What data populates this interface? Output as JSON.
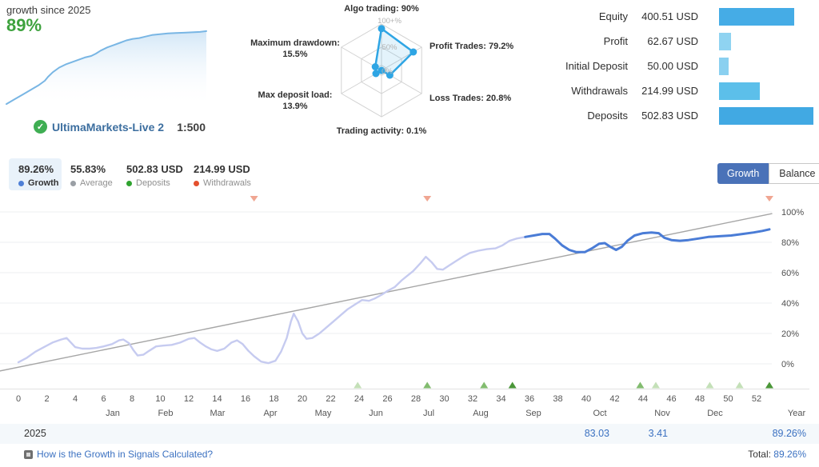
{
  "mini_card": {
    "title": "growth since 2025",
    "growth": "89%"
  },
  "account": {
    "name": "UltimaMarkets-Live 2",
    "leverage": "1:500",
    "verified_icon": "check-shield",
    "verified_color": "#3fae53"
  },
  "stats": [
    {
      "value": "89.26%",
      "label": "Growth",
      "dot_color": "#4e7fd6",
      "active": true
    },
    {
      "value": "55.83%",
      "label": "Average",
      "dot_color": "#9a9fa5",
      "active": false
    },
    {
      "value": "502.83 USD",
      "label": "Deposits",
      "dot_color": "#2fa32f",
      "active": false
    },
    {
      "value": "214.99 USD",
      "label": "Withdrawals",
      "dot_color": "#e4502e",
      "active": false
    }
  ],
  "toggle": {
    "growth_label": "Growth",
    "balance_label": "Balance",
    "active_bg": "#4a72b8"
  },
  "table": {
    "year": "2025",
    "oct_value": "83.03",
    "nov_value": "3.41",
    "year_total": "89.26%",
    "total_label": "Total:",
    "total_value": "89.26%"
  },
  "footer": {
    "link": "How is the Growth in Signals Calculated?"
  },
  "chart_data": [
    {
      "id": "mini_growth",
      "type": "area",
      "title": "growth since 2025",
      "line_color": "#79b6e4",
      "fill_color": "#aed3f0",
      "points": [
        [
          0,
          3
        ],
        [
          10,
          9
        ],
        [
          20,
          15
        ],
        [
          30,
          21
        ],
        [
          40,
          27
        ],
        [
          48,
          33
        ],
        [
          52,
          38
        ],
        [
          58,
          44
        ],
        [
          66,
          50
        ],
        [
          74,
          54
        ],
        [
          82,
          57
        ],
        [
          90,
          60
        ],
        [
          98,
          63
        ],
        [
          106,
          65
        ],
        [
          112,
          68
        ],
        [
          118,
          72
        ],
        [
          126,
          76
        ],
        [
          134,
          79
        ],
        [
          142,
          82
        ],
        [
          150,
          85
        ],
        [
          158,
          87
        ],
        [
          166,
          88
        ],
        [
          174,
          90
        ],
        [
          182,
          92
        ],
        [
          192,
          93
        ],
        [
          202,
          94
        ],
        [
          212,
          94.5
        ],
        [
          222,
          95
        ],
        [
          232,
          95.5
        ],
        [
          242,
          96
        ],
        [
          250,
          97
        ]
      ]
    },
    {
      "id": "radar",
      "type": "radar",
      "stroke_color": "#2ea5e4",
      "fill_color": "rgba(57,169,230,0.14)",
      "grid_color": "#d2d2d2",
      "rings": [
        {
          "label": "100+%",
          "r_pct": 100
        },
        {
          "label": "50%",
          "r_pct": 50
        },
        {
          "label": "0%",
          "r_pct": 11
        }
      ],
      "axes": [
        {
          "label": "Algo trading:",
          "value_text": "90%",
          "value": 90
        },
        {
          "label": "Profit Trades:",
          "value_text": "79.2%",
          "value": 79.2
        },
        {
          "label": "Loss Trades:",
          "value_text": "20.8%",
          "value": 20.8
        },
        {
          "label": "Trading activity:",
          "value_text": "0.1%",
          "value": 0.1
        },
        {
          "label": "Max deposit load:",
          "value_text": "13.9%",
          "value": 13.9
        },
        {
          "label": "Maximum drawdown:",
          "value_text": "15.5%",
          "value": 15.5
        }
      ]
    },
    {
      "id": "balance_bars",
      "type": "bar",
      "categories": [
        "Equity",
        "Profit",
        "Initial Deposit",
        "Withdrawals",
        "Deposits"
      ],
      "values": [
        400.51,
        62.67,
        50.0,
        214.99,
        502.83
      ],
      "value_labels": [
        "400.51 USD",
        "62.67 USD",
        "50.00 USD",
        "214.99 USD",
        "502.83 USD"
      ],
      "colors": [
        "#45ace6",
        "#8fd3f1",
        "#8ad0f0",
        "#5cbfea",
        "#41a9e3"
      ],
      "max": 502.83
    },
    {
      "id": "main_growth",
      "type": "line",
      "xlabel": "Year",
      "x_ticks": [
        0,
        2,
        4,
        6,
        8,
        10,
        12,
        14,
        16,
        18,
        20,
        22,
        24,
        26,
        28,
        30,
        32,
        34,
        36,
        38,
        40,
        42,
        44,
        46,
        48,
        50,
        52
      ],
      "months": [
        "Jan",
        "Feb",
        "Mar",
        "Apr",
        "May",
        "Jun",
        "Jul",
        "Aug",
        "Sep",
        "Oct",
        "Nov",
        "Dec"
      ],
      "year_label": "Year",
      "y_ticks": [
        "100%",
        "80%",
        "60%",
        "40%",
        "20%",
        "0%"
      ],
      "ylim": [
        0,
        100
      ],
      "colors": {
        "early": "#c6cbf0",
        "recent": "#4a7cd6",
        "trend": "#a6a6a6",
        "withdrawal": "#f0a692",
        "deposit_light": "#c4e0b8",
        "deposit_medium": "#82bc6f",
        "deposit_dark": "#4a9638"
      },
      "split_week": 35.7,
      "series": [
        {
          "name": "growth",
          "points": [
            [
              0,
              1
            ],
            [
              0.6,
              4
            ],
            [
              1.2,
              8
            ],
            [
              1.8,
              11
            ],
            [
              2.4,
              14
            ],
            [
              3,
              16
            ],
            [
              3.4,
              17
            ],
            [
              3.7,
              14
            ],
            [
              4,
              11
            ],
            [
              4.5,
              10
            ],
            [
              5,
              10
            ],
            [
              5.5,
              10.5
            ],
            [
              6,
              11.5
            ],
            [
              6.6,
              13
            ],
            [
              7.1,
              15.5
            ],
            [
              7.4,
              16
            ],
            [
              7.8,
              13.5
            ],
            [
              8.1,
              9
            ],
            [
              8.4,
              5.5
            ],
            [
              8.8,
              6
            ],
            [
              9.2,
              8.5
            ],
            [
              9.7,
              11.5
            ],
            [
              10.2,
              12
            ],
            [
              10.8,
              12.5
            ],
            [
              11.4,
              14
            ],
            [
              12,
              16.5
            ],
            [
              12.4,
              17
            ],
            [
              12.8,
              14
            ],
            [
              13.2,
              11.5
            ],
            [
              13.6,
              9.5
            ],
            [
              14,
              8.5
            ],
            [
              14.5,
              10
            ],
            [
              15,
              14
            ],
            [
              15.4,
              15.5
            ],
            [
              15.8,
              13
            ],
            [
              16.2,
              8.5
            ],
            [
              16.6,
              5
            ],
            [
              17.1,
              1.5
            ],
            [
              17.6,
              0.5
            ],
            [
              18.1,
              2
            ],
            [
              18.5,
              8
            ],
            [
              18.9,
              17
            ],
            [
              19.2,
              28
            ],
            [
              19.4,
              33
            ],
            [
              19.7,
              28
            ],
            [
              20,
              20
            ],
            [
              20.3,
              16.5
            ],
            [
              20.7,
              17
            ],
            [
              21.2,
              20
            ],
            [
              21.7,
              24
            ],
            [
              22.2,
              28
            ],
            [
              22.7,
              32
            ],
            [
              23.2,
              36
            ],
            [
              23.7,
              39
            ],
            [
              24.2,
              42
            ],
            [
              24.7,
              41.5
            ],
            [
              25.1,
              43
            ],
            [
              25.6,
              45.5
            ],
            [
              26,
              48
            ],
            [
              26.5,
              50.5
            ],
            [
              27,
              55
            ],
            [
              27.4,
              58
            ],
            [
              27.8,
              61
            ],
            [
              28.3,
              66
            ],
            [
              28.7,
              70.5
            ],
            [
              29.1,
              67
            ],
            [
              29.5,
              62.5
            ],
            [
              29.9,
              62
            ],
            [
              30.3,
              64.5
            ],
            [
              30.8,
              67.5
            ],
            [
              31.3,
              70.5
            ],
            [
              31.8,
              73
            ],
            [
              32.4,
              74.5
            ],
            [
              33,
              75.5
            ],
            [
              33.6,
              76
            ],
            [
              34.1,
              78
            ],
            [
              34.6,
              81
            ],
            [
              35.1,
              82.5
            ],
            [
              35.7,
              83.5
            ],
            [
              36.3,
              84.5
            ],
            [
              36.9,
              85.5
            ],
            [
              37.4,
              85.5
            ],
            [
              37.8,
              82.5
            ],
            [
              38.3,
              78
            ],
            [
              38.8,
              75
            ],
            [
              39.3,
              73.5
            ],
            [
              39.9,
              73.5
            ],
            [
              40.4,
              76
            ],
            [
              40.9,
              79
            ],
            [
              41.3,
              79.5
            ],
            [
              41.7,
              77
            ],
            [
              42.1,
              75
            ],
            [
              42.5,
              77
            ],
            [
              42.9,
              81
            ],
            [
              43.4,
              84.5
            ],
            [
              44,
              86
            ],
            [
              44.6,
              86.5
            ],
            [
              45.1,
              86
            ],
            [
              45.5,
              83
            ],
            [
              46,
              81.5
            ],
            [
              46.6,
              81
            ],
            [
              47.2,
              81.5
            ],
            [
              47.9,
              82.5
            ],
            [
              48.6,
              83.5
            ],
            [
              49.4,
              84
            ],
            [
              50.2,
              84.5
            ],
            [
              51,
              85.5
            ],
            [
              51.8,
              86.5
            ],
            [
              52.4,
              87.5
            ],
            [
              52.9,
              88.5
            ]
          ]
        },
        {
          "name": "trend",
          "points": [
            [
              -1.3,
              -4.7
            ],
            [
              53.1,
              98.9
            ]
          ]
        }
      ],
      "withdrawal_marker_weeks": [
        16.6,
        28.8,
        52.9
      ],
      "deposit_markers": [
        {
          "week": 23.9,
          "shade": "light"
        },
        {
          "week": 28.8,
          "shade": "medium"
        },
        {
          "week": 32.8,
          "shade": "medium"
        },
        {
          "week": 34.8,
          "shade": "dark"
        },
        {
          "week": 43.8,
          "shade": "medium"
        },
        {
          "week": 44.9,
          "shade": "light"
        },
        {
          "week": 48.7,
          "shade": "light"
        },
        {
          "week": 50.8,
          "shade": "light"
        },
        {
          "week": 52.9,
          "shade": "dark"
        }
      ]
    }
  ]
}
